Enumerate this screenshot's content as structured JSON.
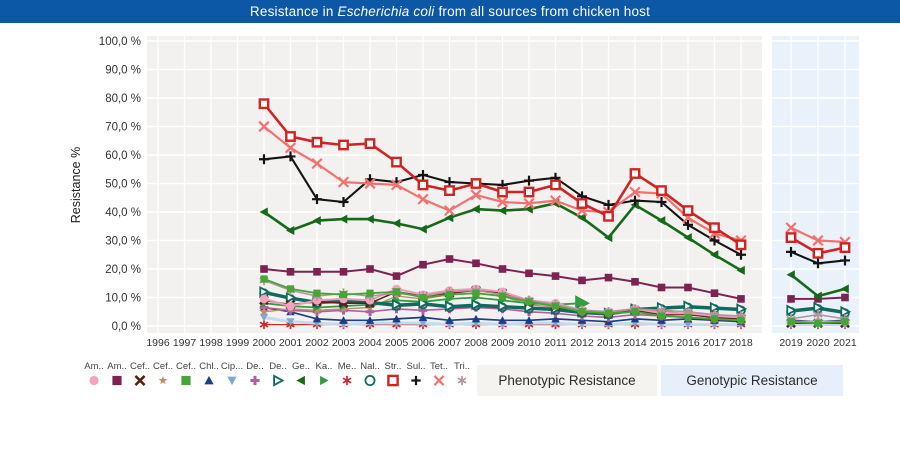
{
  "title": {
    "prefix": "Resistance in ",
    "italic": "Escherichia coli",
    "suffix": " from all sources from chicken host"
  },
  "colors": {
    "titlebar_bg": "#0d57a7",
    "titlebar_text": "#ffffff",
    "axis_text": "#333333",
    "grid": "#ffffff"
  },
  "y_axis": {
    "label": "Resistance %",
    "tick_labels": [
      "0,0 %",
      "10,0 %",
      "20,0 %",
      "30,0 %",
      "40,0 %",
      "50,0 %",
      "60,0 %",
      "70,0 %",
      "80,0 %",
      "90,0 %",
      "100,0 %"
    ]
  },
  "x_axis": {
    "years": [
      1996,
      1997,
      1998,
      1999,
      2000,
      2001,
      2002,
      2003,
      2004,
      2005,
      2006,
      2007,
      2008,
      2009,
      2010,
      2011,
      2012,
      2013,
      2014,
      2015,
      2016,
      2017,
      2018,
      2019,
      2020,
      2021
    ]
  },
  "panels": {
    "phenotypic": {
      "bg": "#f2f1ef"
    },
    "genotypic": {
      "bg": "#e9f1fb"
    }
  },
  "buttons": [
    {
      "label": "Phenotypic Resistance",
      "bg": "#f5f3f0"
    },
    {
      "label": "Genotypic Resistance",
      "bg": "#e7f0fa"
    }
  ],
  "chart_data": {
    "type": "line",
    "title": "Resistance in Escherichia coli from all sources from chicken host",
    "ylabel": "Resistance %",
    "ylim": [
      0,
      100
    ],
    "grid": true,
    "legend_position": "bottom",
    "panel_split": {
      "phenotypic_years": [
        1996,
        2018
      ],
      "genotypic_years": [
        2019,
        2021
      ]
    },
    "x": [
      2000,
      2001,
      2002,
      2003,
      2004,
      2005,
      2006,
      2007,
      2008,
      2009,
      2010,
      2011,
      2012,
      2013,
      2014,
      2015,
      2016,
      2017,
      2018,
      2019,
      2020,
      2021
    ],
    "series": [
      {
        "label": "Am..",
        "marker": "circle",
        "color": "#f2a3c0",
        "line": "#ee9ab8",
        "lw": 2,
        "ms": 4.3,
        "values": [
          9.5,
          7,
          9,
          9.5,
          9,
          13,
          11,
          12.5,
          13,
          12,
          9,
          8,
          5.5,
          5,
          6,
          4.5,
          4.5,
          3.5,
          3,
          1.5,
          1.5,
          1.5
        ]
      },
      {
        "label": "Am..",
        "marker": "square",
        "color": "#7e2253",
        "line": "#7e2253",
        "lw": 2,
        "ms": 3.8,
        "values": [
          20,
          19,
          19,
          19,
          20,
          17.5,
          21.5,
          23.5,
          22,
          20,
          18.5,
          17.5,
          16,
          17,
          15.5,
          13.5,
          13.5,
          11.5,
          9.5,
          9.5,
          9.5,
          10
        ]
      },
      {
        "label": "Cef..",
        "marker": "x",
        "color": "#5e1e13",
        "line": "#5e1e13",
        "lw": 1.5,
        "ms": 4,
        "mw": 2.6,
        "values": [
          9,
          7.5,
          8.5,
          8,
          8,
          12,
          10.5,
          11.5,
          12.5,
          11.5,
          8.5,
          7,
          5,
          4.5,
          5.5,
          4,
          4,
          3,
          2.5,
          1,
          1,
          1
        ]
      },
      {
        "label": "Cef..",
        "marker": "star5",
        "color": "#b5916d",
        "line": "#b5916d",
        "lw": 1.4,
        "ms": 5,
        "values": [
          5,
          6,
          5.5,
          6,
          6.5,
          10.5,
          9.5,
          11,
          11.5,
          10.5,
          7.5,
          6.5,
          4.5,
          4,
          5,
          5.5,
          4,
          3,
          2.5,
          null,
          null,
          null
        ]
      },
      {
        "label": "Cef..",
        "marker": "square",
        "color": "#49a437",
        "line": "#49a437",
        "lw": 1.8,
        "ms": 3.6,
        "values": [
          16.5,
          13,
          11.5,
          11,
          11.5,
          12,
          10,
          11,
          11.5,
          10.5,
          8.5,
          7,
          5,
          4.5,
          5,
          3.5,
          3,
          2.5,
          2,
          1.5,
          1,
          1.5
        ]
      },
      {
        "label": "Chl..",
        "marker": "tri-up",
        "color": "#1c3e86",
        "line": "#1c3e86",
        "lw": 1.7,
        "ms": 4.2,
        "values": [
          6.5,
          5,
          2.5,
          2,
          2,
          2.5,
          3,
          2,
          2.5,
          2,
          2,
          2.5,
          2,
          1.5,
          2.5,
          2,
          2.5,
          2,
          1.5,
          2,
          1.5,
          2
        ]
      },
      {
        "label": "Cip...",
        "marker": "tri-down",
        "color": "#7fa8d7",
        "line": "#c3daf0",
        "lw": 3,
        "ms": 4.2,
        "values": [
          3,
          1.5,
          1,
          0.5,
          1,
          1,
          1,
          0.5,
          1,
          0.5,
          1,
          1,
          0.5,
          0.5,
          1,
          0.5,
          0.5,
          0.5,
          0.5,
          0.5,
          0.5,
          0.5
        ]
      },
      {
        "label": "De..",
        "marker": "plus",
        "color": "#b05f9f",
        "line": "#b05f9f",
        "lw": 1.6,
        "ms": 4.3,
        "mw": 3,
        "values": [
          6.5,
          5.5,
          5,
          5.5,
          5,
          6,
          5.5,
          6,
          6.5,
          6,
          5,
          4.5,
          3.5,
          3,
          4,
          3.5,
          3,
          2.5,
          2,
          null,
          null,
          null
        ]
      },
      {
        "label": "De..",
        "marker": "tri-right-open",
        "color": "#0d6b5e",
        "line": "#0d6b5e",
        "lw": 2.2,
        "ms": 4.3,
        "mw": 1.8,
        "values": [
          12,
          10,
          8.5,
          9,
          8.5,
          7.5,
          8,
          7,
          7.5,
          7,
          6.5,
          6,
          5,
          4.5,
          6,
          6.5,
          7,
          6.5,
          6,
          5.5,
          6.5,
          5
        ]
      },
      {
        "label": "Ge..",
        "marker": "tri-left",
        "color": "#17691a",
        "line": "#17691a",
        "lw": 2.6,
        "ms": 4.5,
        "values": [
          40,
          33.5,
          37,
          37.5,
          37.5,
          36,
          34,
          38,
          41,
          40.5,
          41,
          43,
          38,
          31,
          42.5,
          37,
          31,
          25,
          19.5,
          18,
          10.5,
          13
        ]
      },
      {
        "label": "Ka..",
        "marker": "tri-right",
        "color": "#2f9e41",
        "line": "#2f9e41",
        "lw": 1.8,
        "ms": 4.2,
        "last_point_scale": 1.9,
        "values": [
          8,
          7,
          6.5,
          7,
          7.5,
          9,
          8.5,
          9.5,
          10,
          9,
          8,
          7.5,
          8,
          null,
          null,
          null,
          null,
          null,
          null,
          null,
          null,
          null
        ]
      },
      {
        "label": "Me..",
        "marker": "asterisk",
        "color": "#d02928",
        "line": "#d02928",
        "lw": 1.3,
        "ms": 4.6,
        "mw": 1.7,
        "values": [
          0.5,
          0.5,
          0.5,
          0.5,
          0.5,
          0.5,
          0.5,
          0.5,
          0.5,
          0.5,
          0.5,
          0.5,
          0.5,
          0.5,
          0.5,
          0.5,
          0.5,
          0.5,
          0.5,
          0.5,
          0.5,
          0.5
        ]
      },
      {
        "label": "Nal..",
        "marker": "circle-open",
        "color": "#166a60",
        "line": "#166a60",
        "lw": 2,
        "ms": 3.9,
        "mw": 1.8,
        "values": [
          11.5,
          9.5,
          8,
          8.5,
          8,
          7,
          7.5,
          6.5,
          7,
          6.5,
          6,
          5.5,
          4.5,
          4,
          5.5,
          6,
          6.5,
          6,
          5.5,
          5,
          6,
          4.5
        ]
      },
      {
        "label": "Str..",
        "marker": "square-open",
        "color": "#d02423",
        "line": "#d02423",
        "lw": 2.6,
        "ms": 4.2,
        "mw": 2.4,
        "values": [
          78,
          66.5,
          64.5,
          63.5,
          64,
          57.5,
          49.5,
          47.5,
          50,
          47,
          47,
          49.5,
          43,
          38.5,
          53.5,
          47.5,
          40.5,
          34.5,
          28.5,
          31,
          25.5,
          27.5
        ]
      },
      {
        "label": "Sul..",
        "marker": "plus",
        "color": "#141414",
        "line": "#141414",
        "lw": 2.1,
        "ms": 5,
        "mw": 2.2,
        "values": [
          58.5,
          59.5,
          44.5,
          43.5,
          51.5,
          50.5,
          53,
          50.5,
          50,
          49.5,
          51,
          52,
          45.5,
          42.5,
          44,
          43.5,
          35.5,
          30,
          25,
          26,
          22,
          23
        ]
      },
      {
        "label": "Tet..",
        "marker": "x",
        "color": "#f4716e",
        "line": "#f4716e",
        "lw": 2.2,
        "ms": 4.8,
        "mw": 2.2,
        "values": [
          70,
          62.5,
          57,
          50.5,
          50,
          49.5,
          44.5,
          40.5,
          46,
          43.5,
          43,
          44,
          40.5,
          40,
          47,
          46.5,
          38,
          32.5,
          30,
          34.5,
          30,
          29.5
        ]
      },
      {
        "label": "Tri..",
        "marker": "asterisk",
        "color": "#b3929a",
        "line": "#b3929a",
        "lw": 1.5,
        "ms": 4.8,
        "mw": 1.7,
        "values": [
          16,
          12.5,
          10.5,
          11.5,
          10.5,
          11.5,
          10.5,
          12,
          12.5,
          11,
          9,
          7.5,
          5.5,
          5,
          6,
          5.5,
          5,
          4,
          3.5,
          2.5,
          4,
          2.5
        ]
      }
    ],
    "draw_order": [
      11,
      6,
      5,
      7,
      3,
      10,
      12,
      8,
      2,
      0,
      16,
      4,
      1,
      9,
      14,
      15,
      13
    ]
  }
}
